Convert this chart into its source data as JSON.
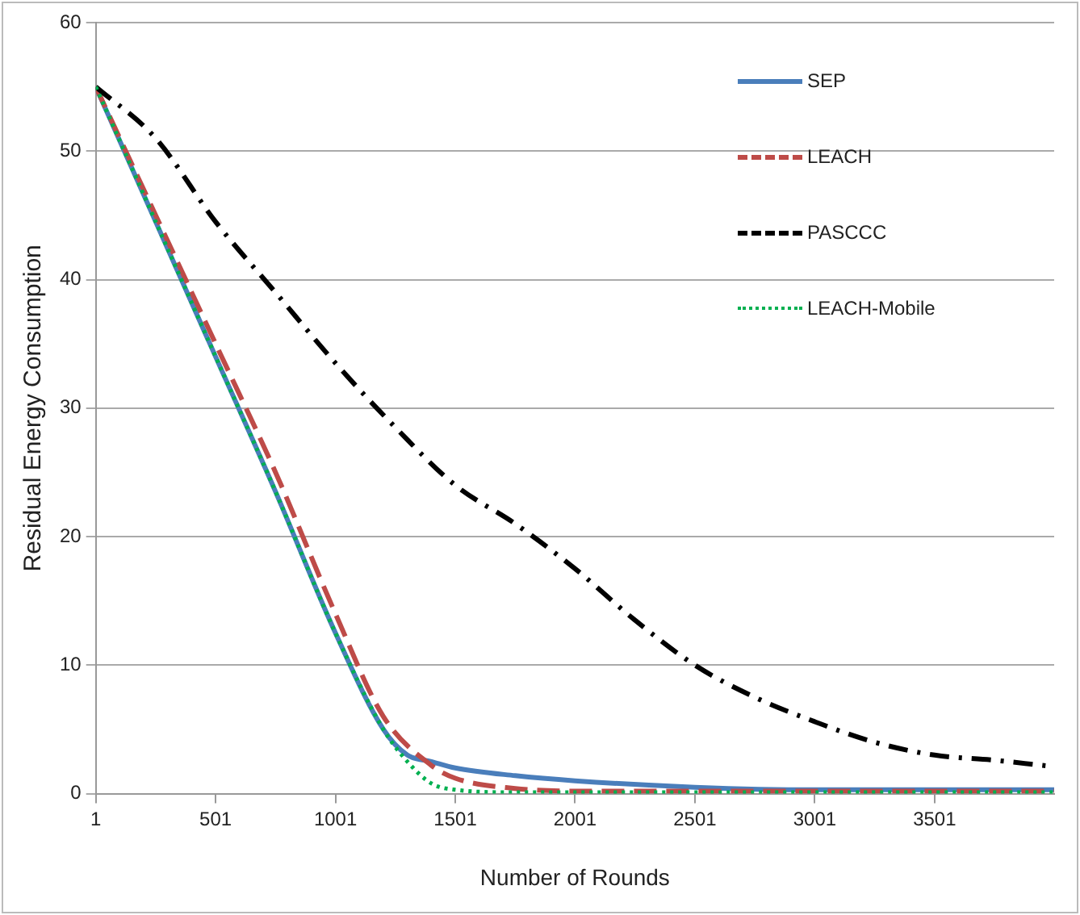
{
  "chart_data": {
    "type": "line",
    "xlabel": "Number of Rounds",
    "ylabel": "Residual Energy Consumption",
    "xlim": [
      1,
      4000
    ],
    "xticks": [
      1,
      501,
      1001,
      1501,
      2001,
      2501,
      3001,
      3501
    ],
    "ylim": [
      0,
      60
    ],
    "yticks": [
      0,
      10,
      20,
      30,
      40,
      50,
      60
    ],
    "grid": "y",
    "legend": "top right",
    "marker": "none",
    "series": [
      {
        "name": "SEP",
        "color": "#4a7ebb",
        "line_style": "solid",
        "x": [
          1,
          251,
          501,
          751,
          1001,
          1201,
          1301,
          1401,
          1501,
          1751,
          2001,
          2501,
          3001,
          4000
        ],
        "values": [
          55,
          44.5,
          34,
          23.5,
          12.5,
          5,
          3,
          2.5,
          2,
          1.4,
          1,
          0.5,
          0.3,
          0.3
        ]
      },
      {
        "name": "LEACH",
        "color": "#be4b48",
        "line_style": "dashed",
        "x": [
          1,
          251,
          501,
          751,
          1001,
          1201,
          1401,
          1501,
          1751,
          2001,
          4000
        ],
        "values": [
          55,
          45,
          35,
          25,
          14,
          6,
          2.2,
          1.2,
          0.4,
          0.2,
          0.2
        ]
      },
      {
        "name": "PASCCC",
        "color": "#000000",
        "line_style": "dashdot",
        "x": [
          1,
          251,
          501,
          751,
          1001,
          1251,
          1501,
          1751,
          2001,
          2251,
          2501,
          2751,
          3001,
          3251,
          3501,
          3751,
          4000
        ],
        "values": [
          55,
          51,
          44.5,
          39,
          33.5,
          28.5,
          24,
          21,
          17.5,
          13.5,
          10,
          7.5,
          5.6,
          4,
          3,
          2.6,
          2.1
        ]
      },
      {
        "name": "LEACH-Mobile",
        "color": "#00b050",
        "line_style": "dotted",
        "x": [
          1,
          251,
          501,
          751,
          1001,
          1201,
          1301,
          1401,
          1501,
          1751,
          4000
        ],
        "values": [
          55,
          44.5,
          34,
          23.5,
          12.5,
          5,
          2.5,
          0.8,
          0.3,
          0.1,
          0.1
        ]
      }
    ]
  }
}
